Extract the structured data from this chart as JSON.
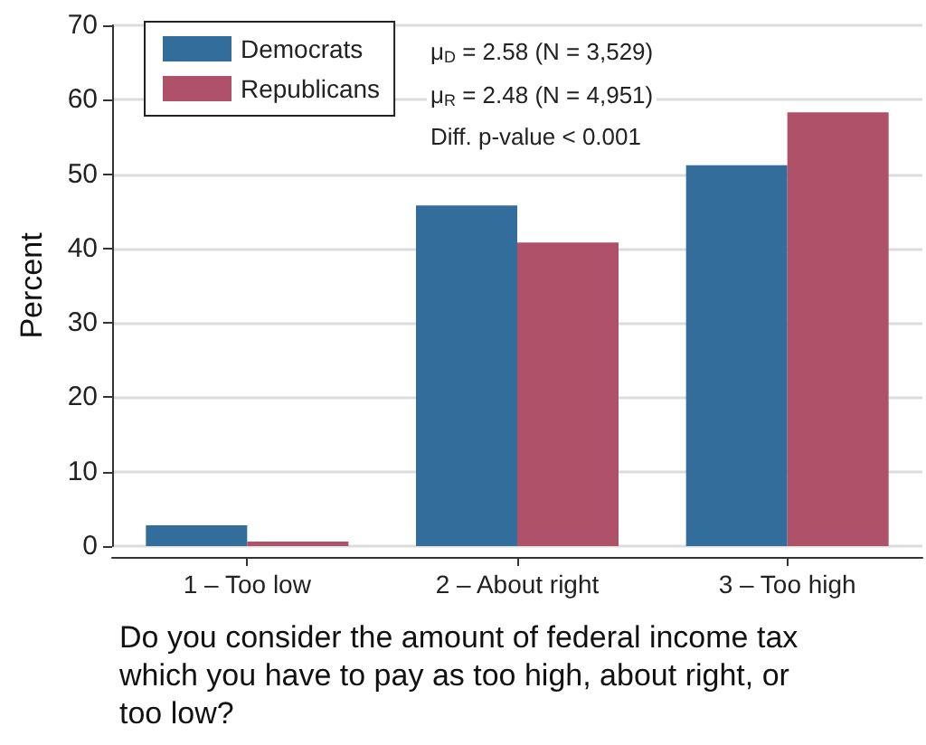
{
  "chart_data": {
    "type": "bar",
    "xlabel": "Do you consider the amount of federal income tax which you have to pay as too high, about right, or too low?",
    "ylabel": "Percent",
    "categories": [
      "1 – Too low",
      "2 – About right",
      "3 – Too high"
    ],
    "series": [
      {
        "name": "Democrats",
        "color": "#336d9c",
        "values": [
          2.8,
          45.8,
          51.2
        ]
      },
      {
        "name": "Republicans",
        "color": "#af5168",
        "values": [
          0.6,
          40.8,
          58.3
        ]
      }
    ],
    "ylim": [
      0,
      70
    ],
    "yticks": [
      0,
      10,
      20,
      30,
      40,
      50,
      60,
      70
    ],
    "grid": "y",
    "legend": "top left",
    "annotations": [
      "μ$_{D}$ = 2.58 (N = 3,529)",
      "μ$_{R}$ = 2.48 (N = 4,951)",
      "Diff. p-value < 0.001"
    ]
  }
}
